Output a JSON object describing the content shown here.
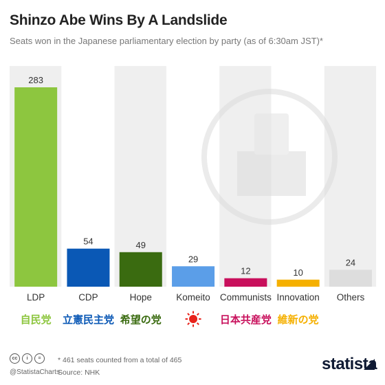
{
  "header": {
    "title": "Shinzo Abe Wins By A Landslide",
    "subtitle": "Seats won in the Japanese parliamentary election by party (as of 6:30am JST)*"
  },
  "footer": {
    "handle": "@StatistaCharts",
    "note": "* 461 seats counted from a total of 465",
    "source": "Source: NHK",
    "brand": "statista"
  },
  "chart_data": {
    "type": "bar",
    "categories": [
      "LDP",
      "CDP",
      "Hope",
      "Komeito",
      "Communists",
      "Innovation",
      "Others"
    ],
    "party_marks": [
      "自民党",
      "立憲民主党",
      "希望の党",
      "",
      "日本共産党",
      "維新の党",
      ""
    ],
    "values": [
      283,
      54,
      49,
      29,
      12,
      10,
      24
    ],
    "colors": [
      "#8dc63f",
      "#0a58b5",
      "#3a6b10",
      "#5b9ee8",
      "#c8105c",
      "#f5b000",
      "#dddddd"
    ],
    "ylim": [
      0,
      283
    ],
    "grid": false,
    "legend": "none"
  }
}
